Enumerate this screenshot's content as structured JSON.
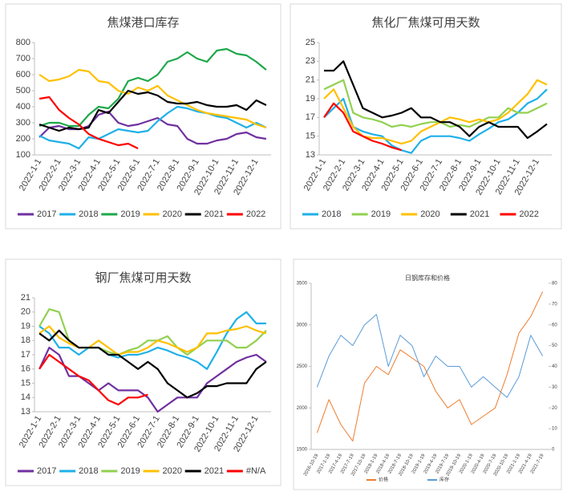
{
  "chart_data": [
    {
      "type": "line",
      "title": "焦煤港口库存",
      "categories": [
        "2022-1-1",
        null,
        "2022-2-1",
        null,
        "2022-3-1",
        null,
        "2022-4-1",
        null,
        "2022-5-1",
        null,
        "2022-6-1",
        null,
        "2022-7-1",
        null,
        "2022-8-1",
        null,
        "2022-9-1",
        null,
        "2022-10-1",
        null,
        "2022-11-1",
        null,
        "2022-12-1",
        null
      ],
      "ylim": [
        100,
        800
      ],
      "yticks": [
        100,
        200,
        300,
        400,
        500,
        600,
        700,
        800
      ],
      "series": [
        {
          "name": "2017",
          "color": "#7030a0",
          "values": [
            210,
            270,
            280,
            260,
            260,
            280,
            350,
            370,
            300,
            280,
            290,
            310,
            330,
            290,
            280,
            200,
            170,
            170,
            190,
            200,
            230,
            240,
            210,
            200
          ]
        },
        {
          "name": "2018",
          "color": "#1fb0e8",
          "values": [
            220,
            190,
            180,
            170,
            140,
            210,
            200,
            230,
            260,
            250,
            240,
            250,
            310,
            360,
            400,
            390,
            370,
            360,
            340,
            330,
            300,
            270,
            300,
            270
          ]
        },
        {
          "name": "2019",
          "color": "#1ea84a",
          "values": [
            280,
            300,
            300,
            280,
            280,
            350,
            400,
            390,
            450,
            560,
            580,
            560,
            600,
            680,
            700,
            740,
            700,
            680,
            750,
            760,
            730,
            720,
            680,
            630
          ]
        },
        {
          "name": "2020",
          "color": "#ffc000",
          "values": [
            600,
            560,
            570,
            590,
            630,
            620,
            560,
            550,
            500,
            480,
            520,
            500,
            530,
            470,
            440,
            410,
            380,
            360,
            350,
            340,
            330,
            320,
            290,
            270
          ]
        },
        {
          "name": "2021",
          "color": "#000000",
          "values": [
            290,
            270,
            250,
            270,
            260,
            270,
            380,
            360,
            430,
            500,
            480,
            490,
            470,
            430,
            420,
            420,
            430,
            410,
            400,
            400,
            410,
            380,
            440,
            410
          ]
        },
        {
          "name": "2022",
          "color": "#ff0000",
          "values": [
            450,
            460,
            380,
            330,
            290,
            230,
            200,
            180,
            160,
            170,
            140,
            null,
            null,
            null,
            null,
            null,
            null,
            null,
            null,
            null,
            null,
            null,
            null,
            null
          ]
        }
      ]
    },
    {
      "type": "line",
      "title": "焦化厂焦煤可用天数",
      "categories": [
        "2022-1-1",
        null,
        "2022-2-1",
        null,
        "2022-3-1",
        null,
        "2022-4-1",
        null,
        "2022-5-1",
        null,
        "2022-6-1",
        null,
        "2022-7-1",
        null,
        "2022-8-1",
        null,
        "2022-9-1",
        null,
        "2022-10-1",
        null,
        "2022-11-1",
        null,
        "2022-12-1",
        null
      ],
      "ylim": [
        13,
        25
      ],
      "yticks": [
        13,
        15,
        17,
        19,
        21,
        23,
        25
      ],
      "series": [
        {
          "name": "2018",
          "color": "#1fb0e8",
          "values": [
            17,
            18,
            19,
            16,
            15.5,
            15.2,
            15,
            14,
            13.5,
            13.2,
            14.5,
            15,
            15,
            15,
            14.8,
            14.5,
            15.2,
            15.8,
            16.5,
            16.8,
            17.5,
            18.5,
            19,
            20
          ]
        },
        {
          "name": "2019",
          "color": "#92d050",
          "values": [
            20,
            20.5,
            21,
            17.5,
            17,
            16.8,
            16.5,
            16,
            16.2,
            16,
            16.3,
            16.5,
            16.5,
            16,
            16.2,
            16,
            16.5,
            17,
            17,
            18,
            17.5,
            17.5,
            18,
            18.5
          ]
        },
        {
          "name": "2020",
          "color": "#ffc000",
          "values": [
            19,
            20,
            18,
            16,
            15,
            14.8,
            14.8,
            14.5,
            14.2,
            14.5,
            15.5,
            16,
            16.5,
            17,
            16.8,
            16.5,
            16.8,
            16.5,
            16.8,
            17.5,
            18.5,
            19.5,
            21,
            20.5
          ]
        },
        {
          "name": "2021",
          "color": "#000000",
          "values": [
            22,
            22,
            23,
            20.5,
            18,
            17.5,
            17,
            17.2,
            17.5,
            18,
            17,
            17,
            16.5,
            16.5,
            16,
            15,
            16,
            16.5,
            16,
            16,
            16,
            14.8,
            15.5,
            16.3
          ]
        },
        {
          "name": "2022",
          "color": "#ff0000",
          "values": [
            17,
            18.5,
            17.5,
            15.5,
            15,
            14.5,
            14.2,
            13.8,
            13.5,
            null,
            null,
            null,
            null,
            null,
            null,
            null,
            null,
            null,
            null,
            null,
            null,
            null,
            null,
            null
          ]
        }
      ]
    },
    {
      "type": "line",
      "title": "钢厂焦煤可用天数",
      "categories": [
        "2022-1-1",
        null,
        "2022-2-1",
        null,
        "2022-3-1",
        null,
        "2022-4-1",
        null,
        "2022-5-1",
        null,
        "2022-6-1",
        null,
        "2022-7-1",
        null,
        "2022-8-1",
        null,
        "2022-9-1",
        null,
        "2022-10-1",
        null,
        "2022-11-1",
        null,
        "2022-12-1",
        null
      ],
      "ylim": [
        13,
        21
      ],
      "yticks": [
        13,
        14,
        15,
        16,
        17,
        18,
        19,
        20,
        21
      ],
      "series": [
        {
          "name": "2017",
          "color": "#7030a0",
          "values": [
            16,
            17.5,
            17,
            15.5,
            15.5,
            15,
            14.5,
            15,
            14.5,
            14.5,
            14.5,
            14,
            13,
            13.5,
            14,
            14,
            14,
            15,
            15.5,
            16,
            16.5,
            16.8,
            17,
            16.5
          ]
        },
        {
          "name": "2018",
          "color": "#1fb0e8",
          "values": [
            19,
            18.5,
            17.5,
            17.5,
            17,
            17.5,
            17.5,
            17,
            16.8,
            17,
            17,
            17.2,
            17.5,
            17.3,
            17,
            16.8,
            16.5,
            16,
            17.2,
            18.5,
            19.5,
            20,
            19.2,
            19.2
          ]
        },
        {
          "name": "2019",
          "color": "#92d050",
          "values": [
            19,
            20.2,
            20,
            18,
            17.5,
            17.5,
            17.5,
            17.2,
            17,
            17.3,
            17.5,
            18,
            18,
            18.3,
            17.5,
            17,
            17.5,
            18,
            18,
            18,
            17.5,
            17.5,
            18,
            18.7
          ]
        },
        {
          "name": "2020",
          "color": "#ffc000",
          "values": [
            18.5,
            19,
            18.2,
            17.8,
            17.5,
            17.5,
            18,
            17.5,
            17,
            17.2,
            17.2,
            17.5,
            18,
            17.8,
            17.5,
            17.2,
            17.5,
            18.5,
            18.5,
            18.7,
            18.8,
            19,
            18.7,
            18.5
          ]
        },
        {
          "name": "2021",
          "color": "#000000",
          "values": [
            18.5,
            18,
            18.7,
            18,
            17.5,
            17.5,
            17.5,
            17,
            17,
            16.5,
            16,
            16.5,
            16,
            15,
            14.5,
            14,
            14.3,
            14.8,
            14.8,
            15,
            15,
            15,
            16,
            16.5
          ]
        },
        {
          "name": "#N/A",
          "color": "#ff0000",
          "values": [
            16,
            17,
            16.5,
            16,
            15.5,
            15.2,
            14.5,
            13.8,
            13.5,
            14,
            14,
            14.2,
            null,
            null,
            null,
            null,
            null,
            null,
            null,
            null,
            null,
            null,
            null,
            null
          ]
        }
      ]
    },
    {
      "type": "line",
      "title": "日钢库存和价格",
      "categories": [
        "2016-10-19",
        "2017-1-19",
        "2017-4-19",
        "2017-7-19",
        "2017-10-19",
        "2018-1-19",
        "2018-4-19",
        "2018-7-19",
        "2018-10-19",
        "2019-1-19",
        "2019-4-19",
        "2019-7-19",
        "2019-10-19",
        "2020-1-19",
        "2020-4-19",
        "2020-7-19",
        "2020-10-19",
        "2021-1-19",
        "2021-4-19",
        "2021-7-19"
      ],
      "ylim": [
        1500,
        3500
      ],
      "yticks": [
        1500,
        2000,
        2500,
        3000,
        3500
      ],
      "y2lim": [
        0,
        80
      ],
      "y2ticks": [
        0,
        10,
        20,
        30,
        40,
        50,
        60,
        70,
        80
      ],
      "series": [
        {
          "name": "价格",
          "color": "#ed7d31",
          "values": [
            1700,
            2100,
            1800,
            1600,
            2300,
            2500,
            2400,
            2700,
            2600,
            2500,
            2200,
            2000,
            2100,
            1800,
            1900,
            2000,
            2400,
            2900,
            3100,
            3400
          ]
        },
        {
          "name": "库存",
          "color": "#5b9bd5",
          "axis": "y2",
          "values": [
            30,
            45,
            55,
            50,
            60,
            65,
            40,
            55,
            50,
            35,
            45,
            40,
            40,
            30,
            35,
            30,
            25,
            35,
            55,
            45
          ]
        }
      ]
    }
  ]
}
